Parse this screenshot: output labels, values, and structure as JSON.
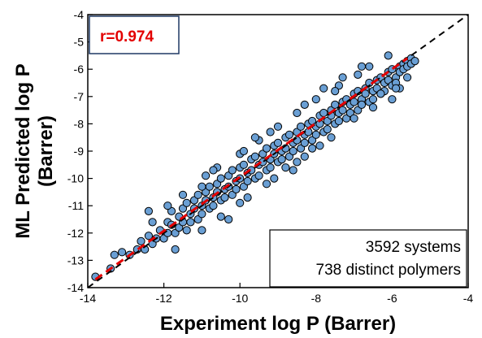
{
  "chart_data": {
    "type": "scatter",
    "title": "",
    "xlabel": "Experiment log P (Barrer)",
    "ylabel_lines": [
      "ML Predicted log P",
      "(Barrer)"
    ],
    "xlim": [
      -14,
      -4
    ],
    "ylim": [
      -14,
      -4
    ],
    "xticks": [
      -14,
      -12,
      -10,
      -8,
      -6,
      -4
    ],
    "yticks": [
      -14,
      -13,
      -12,
      -11,
      -10,
      -9,
      -8,
      -7,
      -6,
      -5,
      -4
    ],
    "grid": false,
    "annotations": {
      "r_label": "r=0.974",
      "systems": "3592 systems",
      "polymers": "738 distinct polymers"
    },
    "reference_lines": [
      {
        "kind": "identity",
        "style": "black-dashed",
        "x": [
          -14,
          -4
        ],
        "y": [
          -14,
          -4
        ]
      },
      {
        "kind": "fit",
        "style": "red-dashed",
        "x": [
          -13.8,
          -5.6
        ],
        "y": [
          -13.7,
          -5.6
        ]
      }
    ],
    "marker": {
      "fill": "#6a9fd4",
      "edge": "#000000"
    },
    "colors": {
      "r_text": "#e30000",
      "fit_line": "#e30000",
      "identity_line": "#000000"
    },
    "points": [
      [
        -13.8,
        -13.6
      ],
      [
        -13.4,
        -13.3
      ],
      [
        -13.3,
        -12.8
      ],
      [
        -13.1,
        -12.7
      ],
      [
        -12.9,
        -12.8
      ],
      [
        -12.7,
        -12.6
      ],
      [
        -12.6,
        -12.3
      ],
      [
        -12.5,
        -12.6
      ],
      [
        -12.4,
        -12.1
      ],
      [
        -12.3,
        -12.4
      ],
      [
        -12.3,
        -11.6
      ],
      [
        -12.2,
        -12.2
      ],
      [
        -12.1,
        -11.9
      ],
      [
        -12.0,
        -12.2
      ],
      [
        -11.9,
        -11.6
      ],
      [
        -11.9,
        -12.0
      ],
      [
        -11.8,
        -11.2
      ],
      [
        -11.8,
        -11.7
      ],
      [
        -11.7,
        -12.0
      ],
      [
        -11.6,
        -11.4
      ],
      [
        -11.6,
        -11.8
      ],
      [
        -11.5,
        -11.1
      ],
      [
        -11.5,
        -11.6
      ],
      [
        -11.4,
        -11.9
      ],
      [
        -11.4,
        -10.9
      ],
      [
        -11.3,
        -11.3
      ],
      [
        -11.3,
        -11.6
      ],
      [
        -11.2,
        -10.8
      ],
      [
        -11.2,
        -11.1
      ],
      [
        -11.1,
        -11.5
      ],
      [
        -11.1,
        -10.6
      ],
      [
        -11.0,
        -11.0
      ],
      [
        -11.0,
        -11.3
      ],
      [
        -10.9,
        -10.5
      ],
      [
        -10.9,
        -10.8
      ],
      [
        -10.8,
        -11.1
      ],
      [
        -10.8,
        -10.3
      ],
      [
        -10.7,
        -10.7
      ],
      [
        -10.7,
        -11.0
      ],
      [
        -10.6,
        -10.2
      ],
      [
        -10.6,
        -10.5
      ],
      [
        -10.5,
        -10.8
      ],
      [
        -10.5,
        -10.0
      ],
      [
        -10.4,
        -10.4
      ],
      [
        -10.4,
        -10.7
      ],
      [
        -10.3,
        -9.9
      ],
      [
        -10.3,
        -10.3
      ],
      [
        -10.2,
        -10.6
      ],
      [
        -10.2,
        -9.7
      ],
      [
        -10.1,
        -10.1
      ],
      [
        -10.1,
        -10.4
      ],
      [
        -10.0,
        -9.6
      ],
      [
        -10.0,
        -10.0
      ],
      [
        -9.9,
        -10.3
      ],
      [
        -9.9,
        -9.5
      ],
      [
        -9.8,
        -9.8
      ],
      [
        -9.8,
        -10.1
      ],
      [
        -9.7,
        -9.3
      ],
      [
        -9.7,
        -9.7
      ],
      [
        -9.6,
        -10.0
      ],
      [
        -9.6,
        -9.2
      ],
      [
        -9.5,
        -9.5
      ],
      [
        -9.5,
        -9.9
      ],
      [
        -9.4,
        -9.1
      ],
      [
        -9.4,
        -9.4
      ],
      [
        -9.3,
        -9.7
      ],
      [
        -9.3,
        -8.9
      ],
      [
        -9.2,
        -9.3
      ],
      [
        -9.2,
        -9.6
      ],
      [
        -9.1,
        -8.8
      ],
      [
        -9.1,
        -9.1
      ],
      [
        -9.0,
        -9.4
      ],
      [
        -9.0,
        -8.7
      ],
      [
        -8.9,
        -9.0
      ],
      [
        -8.9,
        -9.3
      ],
      [
        -8.8,
        -8.5
      ],
      [
        -8.8,
        -8.9
      ],
      [
        -8.7,
        -9.2
      ],
      [
        -8.7,
        -8.4
      ],
      [
        -8.6,
        -8.7
      ],
      [
        -8.6,
        -9.0
      ],
      [
        -8.5,
        -8.3
      ],
      [
        -8.5,
        -8.6
      ],
      [
        -8.4,
        -8.9
      ],
      [
        -8.4,
        -8.1
      ],
      [
        -8.3,
        -8.4
      ],
      [
        -8.3,
        -8.7
      ],
      [
        -8.2,
        -8.0
      ],
      [
        -8.2,
        -8.3
      ],
      [
        -8.1,
        -8.6
      ],
      [
        -8.1,
        -7.9
      ],
      [
        -8.0,
        -8.1
      ],
      [
        -8.0,
        -8.4
      ],
      [
        -7.9,
        -7.7
      ],
      [
        -7.9,
        -8.0
      ],
      [
        -7.8,
        -8.3
      ],
      [
        -7.8,
        -7.6
      ],
      [
        -7.7,
        -7.9
      ],
      [
        -7.7,
        -8.2
      ],
      [
        -7.6,
        -7.5
      ],
      [
        -7.6,
        -7.7
      ],
      [
        -7.5,
        -8.0
      ],
      [
        -7.5,
        -7.3
      ],
      [
        -7.4,
        -7.6
      ],
      [
        -7.4,
        -7.9
      ],
      [
        -7.3,
        -7.2
      ],
      [
        -7.3,
        -7.5
      ],
      [
        -7.2,
        -7.8
      ],
      [
        -7.2,
        -7.1
      ],
      [
        -7.1,
        -7.3
      ],
      [
        -7.1,
        -7.6
      ],
      [
        -7.0,
        -6.9
      ],
      [
        -7.0,
        -7.2
      ],
      [
        -6.9,
        -7.5
      ],
      [
        -6.9,
        -6.8
      ],
      [
        -6.8,
        -7.1
      ],
      [
        -6.8,
        -7.3
      ],
      [
        -6.7,
        -6.7
      ],
      [
        -6.7,
        -6.9
      ],
      [
        -6.6,
        -7.2
      ],
      [
        -6.6,
        -6.5
      ],
      [
        -6.5,
        -6.8
      ],
      [
        -6.5,
        -7.1
      ],
      [
        -6.4,
        -6.4
      ],
      [
        -6.4,
        -6.7
      ],
      [
        -6.3,
        -6.9
      ],
      [
        -6.3,
        -6.3
      ],
      [
        -6.2,
        -6.5
      ],
      [
        -6.2,
        -6.8
      ],
      [
        -6.1,
        -6.1
      ],
      [
        -6.1,
        -6.4
      ],
      [
        -6.0,
        -6.6
      ],
      [
        -6.0,
        -6.0
      ],
      [
        -5.9,
        -6.3
      ],
      [
        -5.9,
        -6.5
      ],
      [
        -5.8,
        -5.9
      ],
      [
        -5.8,
        -6.1
      ],
      [
        -5.7,
        -5.8
      ],
      [
        -5.7,
        -6.0
      ],
      [
        -5.6,
        -5.7
      ],
      [
        -5.6,
        -5.9
      ],
      [
        -5.5,
        -5.6
      ],
      [
        -5.5,
        -5.8
      ],
      [
        -5.4,
        -5.7
      ],
      [
        -11.5,
        -10.6
      ],
      [
        -11.0,
        -10.3
      ],
      [
        -10.6,
        -9.6
      ],
      [
        -10.0,
        -9.1
      ],
      [
        -9.5,
        -8.6
      ],
      [
        -9.0,
        -8.1
      ],
      [
        -8.5,
        -7.6
      ],
      [
        -8.0,
        -7.1
      ],
      [
        -7.4,
        -6.6
      ],
      [
        -6.9,
        -6.2
      ],
      [
        -11.0,
        -11.9
      ],
      [
        -10.5,
        -11.4
      ],
      [
        -10.0,
        -10.9
      ],
      [
        -9.3,
        -10.2
      ],
      [
        -8.8,
        -9.6
      ],
      [
        -8.3,
        -9.2
      ],
      [
        -7.6,
        -8.5
      ],
      [
        -7.0,
        -7.8
      ],
      [
        -6.5,
        -7.4
      ],
      [
        -5.8,
        -6.7
      ],
      [
        -11.9,
        -11.0
      ],
      [
        -9.9,
        -9.0
      ],
      [
        -8.3,
        -7.3
      ],
      [
        -7.5,
        -6.8
      ],
      [
        -6.0,
        -7.1
      ],
      [
        -9.1,
        -10.0
      ],
      [
        -10.3,
        -11.5
      ],
      [
        -7.8,
        -6.7
      ],
      [
        -8.6,
        -9.7
      ],
      [
        -10.7,
        -9.7
      ],
      [
        -6.6,
        -5.9
      ],
      [
        -12.4,
        -11.2
      ],
      [
        -9.6,
        -8.5
      ],
      [
        -8.1,
        -8.9
      ],
      [
        -7.3,
        -6.3
      ],
      [
        -6.3,
        -6.9
      ],
      [
        -5.9,
        -6.7
      ],
      [
        -8.5,
        -9.4
      ],
      [
        -6.8,
        -5.9
      ],
      [
        -11.7,
        -12.6
      ],
      [
        -9.8,
        -10.7
      ],
      [
        -7.9,
        -8.8
      ],
      [
        -6.1,
        -5.5
      ],
      [
        -5.6,
        -6.3
      ],
      [
        -10.9,
        -9.9
      ],
      [
        -9.2,
        -8.3
      ]
    ]
  }
}
